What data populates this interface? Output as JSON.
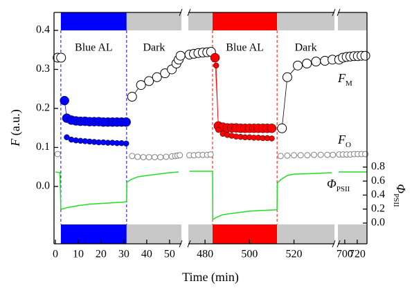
{
  "chart_data": {
    "type": "broken-axis-scatter",
    "xlabel": "Time (min)",
    "ylabel": {
      "symbol": "F",
      "unit": " (a.u.)"
    },
    "y2label": {
      "symbol": "Φ",
      "sub": "PSII"
    },
    "x_segments": [
      {
        "xlim": [
          -0.6,
          55.2
        ],
        "xticks": [
          0,
          10,
          20,
          30,
          40,
          50
        ]
      },
      {
        "xlim": [
          472.5,
          538.2
        ],
        "xticks": [
          480,
          500,
          520
        ]
      },
      {
        "xlim": [
          689,
          735.7
        ],
        "xticks": [
          700,
          720
        ]
      }
    ],
    "ylim": [
      -0.147,
      0.446
    ],
    "yticks": [
      {
        "value": 0,
        "label": "0.0"
      },
      0.1,
      0.2,
      0.3,
      0.4
    ],
    "y2lim": [
      -0.296,
      3.01
    ],
    "y2ticks": [
      {
        "value": 0,
        "label": "0.0"
      },
      0.2,
      0.4,
      0.6,
      0.8
    ],
    "periods": [
      {
        "label": "Blue AL",
        "start": 2.4,
        "end": 31.2,
        "color": "#0000ff",
        "dashed_edges": true
      },
      {
        "label": "Dark",
        "start": 31.2,
        "end": 483.4,
        "color": "#c8c8c8",
        "dashed_edges": false
      },
      {
        "label": "Blue AL",
        "start": 483.4,
        "end": 512.4,
        "color": "#ff0000",
        "dashed_edges": true
      },
      {
        "label": "Dark",
        "start": 512.4,
        "end": 735.7,
        "color": "#c8c8c8",
        "dashed_edges": false
      }
    ],
    "annotations": [
      {
        "text": "F",
        "sub": "M"
      },
      {
        "text": "F",
        "sub": "O"
      },
      {
        "text": "Φ",
        "sub": "PSII"
      }
    ],
    "series": [
      {
        "color": "#000000",
        "marker": "open-large",
        "line": "solid",
        "x": [
          1,
          2.5,
          3,
          33.6,
          37.5,
          41,
          44.5,
          48,
          51,
          53,
          54,
          54.8,
          473,
          475,
          477,
          479,
          481,
          482.7,
          483,
          514.6,
          517,
          521.7,
          525.8,
          529.9,
          533.9,
          537.3,
          691,
          697,
          703,
          709,
          715,
          721,
          727,
          733
        ],
        "values": [
          0.33,
          0.33,
          null,
          0.23,
          0.26,
          0.27,
          0.28,
          0.29,
          0.3,
          0.315,
          0.325,
          0.335,
          0.338,
          0.34,
          0.342,
          0.343,
          0.344,
          0.345,
          null,
          0.149,
          0.28,
          0.31,
          0.315,
          0.32,
          0.322,
          0.325,
          0.325,
          0.33,
          0.332,
          0.333,
          0.334,
          0.334,
          0.335,
          0.335
        ]
      },
      {
        "color": "#0000ff",
        "marker": "filled-large",
        "line": "solid",
        "x": [
          4,
          5,
          7,
          9,
          11,
          13,
          15,
          17,
          19,
          21,
          23,
          25,
          27,
          29,
          31
        ],
        "values": [
          0.22,
          0.175,
          0.17,
          0.168,
          0.167,
          0.167,
          0.166,
          0.166,
          0.166,
          0.165,
          0.165,
          0.165,
          0.165,
          0.165,
          0.165
        ]
      },
      {
        "color": "#0000ff",
        "marker": "filled-small",
        "line": "solid",
        "x": [
          5,
          7,
          9,
          11,
          13,
          15,
          17,
          19,
          21,
          23,
          25,
          27,
          29,
          31
        ],
        "values": [
          0.126,
          0.12,
          0.118,
          0.117,
          0.116,
          0.115,
          0.114,
          0.113,
          0.113,
          0.112,
          0.112,
          0.111,
          0.111,
          0.11
        ]
      },
      {
        "color": "#ff0000",
        "marker": "filled-large",
        "line": "solid",
        "x": [
          484.5,
          486,
          488,
          490,
          492,
          494,
          496,
          498,
          500,
          502,
          504,
          506,
          508,
          510
        ],
        "values": [
          0.33,
          0.155,
          0.152,
          0.15,
          0.15,
          0.15,
          0.149,
          0.149,
          0.149,
          0.149,
          0.149,
          0.149,
          0.149,
          0.149
        ]
      },
      {
        "color": "#ff0000",
        "marker": "filled-small",
        "line": "solid",
        "x": [
          485,
          486,
          488,
          490,
          492,
          494,
          496,
          498,
          500,
          502,
          504,
          506,
          508,
          510
        ],
        "values": [
          0.31,
          0.145,
          0.135,
          0.132,
          0.13,
          0.128,
          0.127,
          0.126,
          0.126,
          0.125,
          0.125,
          0.124,
          0.124,
          0.123
        ]
      },
      {
        "color": "#808080",
        "marker": "open-small",
        "line": "dashed",
        "x": [
          1,
          2,
          33.6,
          36,
          38.5,
          41,
          43.5,
          46,
          48.5,
          51,
          52.5,
          53.5,
          54.5,
          473,
          475,
          477,
          479,
          481,
          482.5,
          483,
          514,
          517,
          520,
          523,
          526,
          529,
          532,
          535,
          537.5,
          691,
          697,
          703,
          709,
          715,
          721,
          727,
          733
        ],
        "values": [
          0.083,
          null,
          0.078,
          0.076,
          0.075,
          0.075,
          0.075,
          0.075,
          0.076,
          0.077,
          0.078,
          0.079,
          0.08,
          0.08,
          0.08,
          0.081,
          0.081,
          0.081,
          0.082,
          null,
          0.078,
          0.079,
          0.08,
          0.08,
          0.08,
          0.081,
          0.081,
          0.081,
          0.081,
          0.082,
          0.082,
          0.082,
          0.082,
          0.083,
          0.083,
          0.083,
          0.083
        ]
      },
      {
        "color": "#22dd22",
        "marker": "none",
        "line": "solid",
        "axis": "y2",
        "x": [
          0,
          2,
          2.4,
          3,
          5,
          10,
          15,
          20,
          25,
          30,
          31.2,
          31.3,
          33,
          36,
          40,
          45,
          50,
          54,
          473,
          478,
          483.4,
          483.5,
          485,
          488,
          495,
          500,
          505,
          512.4,
          512.5,
          514,
          517,
          520,
          530,
          537,
          690,
          700,
          710,
          720,
          735
        ],
        "values": [
          0.73,
          0.72,
          0.2,
          0.2,
          0.22,
          0.25,
          0.27,
          0.28,
          0.29,
          0.3,
          0.31,
          0.58,
          0.62,
          0.66,
          0.68,
          0.7,
          0.72,
          0.73,
          0.74,
          0.74,
          0.74,
          0.05,
          0.08,
          0.12,
          0.15,
          0.17,
          0.18,
          0.19,
          0.57,
          0.62,
          0.68,
          0.7,
          0.71,
          0.72,
          0.73,
          0.73,
          0.73,
          0.73,
          0.73
        ]
      }
    ]
  }
}
